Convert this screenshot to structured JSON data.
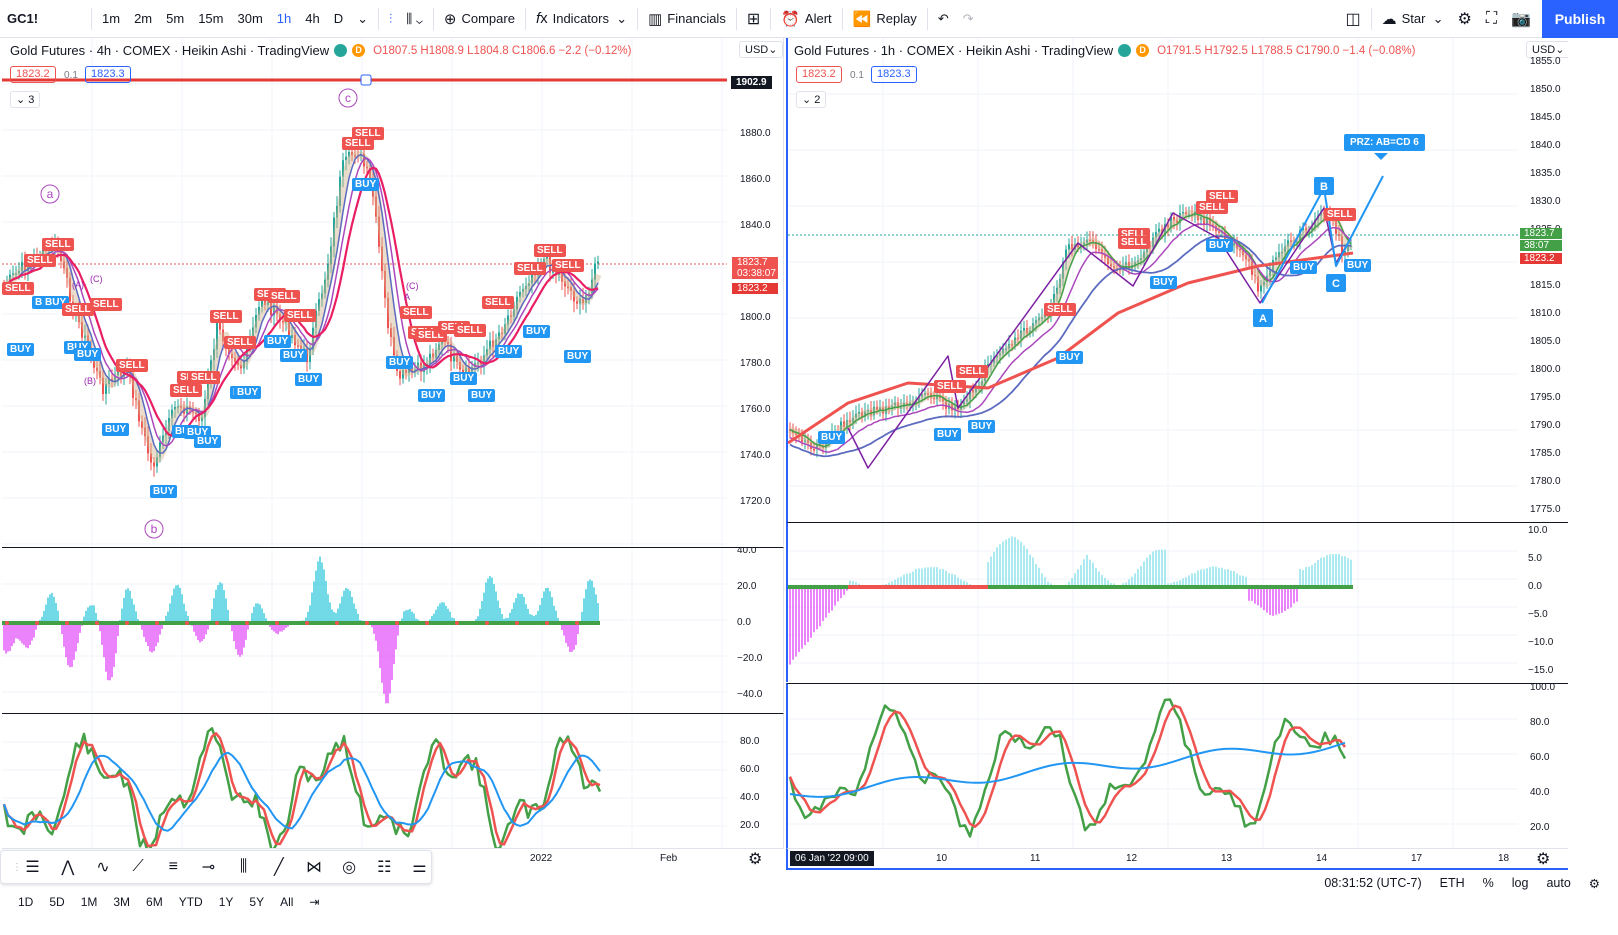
{
  "toolbar": {
    "symbol": "GC1!",
    "intervals": [
      "1m",
      "2m",
      "5m",
      "15m",
      "30m",
      "1h",
      "4h",
      "D"
    ],
    "active_interval": "1h",
    "compare": "Compare",
    "indicators": "Indicators",
    "financials": "Financials",
    "alert": "Alert",
    "replay": "Replay",
    "layout_name": "Star",
    "publish": "Publish"
  },
  "left": {
    "title": "Gold Futures · 4h · COMEX · Heikin Ashi · TradingView",
    "ohlc": "O1807.5 H1808.9 L1804.8 C1806.6 −2.2 (−0.12%)",
    "bid": "1823.2",
    "spread": "0.1",
    "ask": "1823.3",
    "collapse": "3",
    "currency": "USD",
    "hline_label": "1902.9",
    "price_label": "1823.7",
    "countdown": "03:38:07",
    "price_label2": "1823.2",
    "price_ticks": [
      "1880.0",
      "1860.0",
      "1840.0",
      "1820.0",
      "1800.0",
      "1780.0",
      "1760.0",
      "1740.0",
      "1720.0"
    ],
    "osc_ticks": [
      "40.0",
      "20.0",
      "0.0",
      "−20.0",
      "−40.0"
    ],
    "rsi_ticks": [
      "80.0",
      "60.0",
      "40.0",
      "20.0"
    ],
    "time_ticks": [
      "2022",
      "Feb"
    ],
    "wave_labels": [
      "a",
      "b",
      "c"
    ],
    "small_labels": [
      "(A)",
      "(C)",
      "(B)",
      "A",
      "(C)"
    ]
  },
  "right": {
    "title": "Gold Futures · 1h · COMEX · Heikin Ashi · TradingView",
    "ohlc": "O1791.5 H1792.5 L1788.5 C1790.0 −1.4 (−0.08%)",
    "bid": "1823.2",
    "spread": "0.1",
    "ask": "1823.3",
    "collapse": "2",
    "currency": "USD",
    "price_label": "1823.7",
    "countdown": "38:07",
    "price_label2": "1823.2",
    "price_ticks": [
      "1855.0",
      "1850.0",
      "1845.0",
      "1840.0",
      "1835.0",
      "1830.0",
      "1825.0",
      "1820.0",
      "1815.0",
      "1810.0",
      "1805.0",
      "1800.0",
      "1795.0",
      "1790.0",
      "1785.0",
      "1780.0",
      "1775.0"
    ],
    "osc_ticks": [
      "10.0",
      "5.0",
      "0.0",
      "−5.0",
      "−10.0",
      "−15.0"
    ],
    "rsi_ticks": [
      "100.0",
      "80.0",
      "60.0",
      "40.0",
      "20.0"
    ],
    "date_badge": "06 Jan '22   09:00",
    "time_ticks": [
      "10",
      "11",
      "12",
      "13",
      "14",
      "17",
      "18"
    ],
    "prz": "PRZ: AB=CD 6",
    "abcd": [
      "A",
      "B",
      "C"
    ]
  },
  "bottom": {
    "ranges": [
      "1D",
      "5D",
      "1M",
      "3M",
      "6M",
      "YTD",
      "1Y",
      "5Y",
      "All"
    ],
    "clock": "08:31:52 (UTC-7)",
    "session": "ETH",
    "pct": "%",
    "log": "log",
    "auto": "auto"
  },
  "colors": {
    "accent": "#2962ff",
    "sell": "#ef5350",
    "buy": "#2196f3",
    "green": "#43a047",
    "cyan": "#26c6da",
    "magenta": "#e040fb"
  }
}
